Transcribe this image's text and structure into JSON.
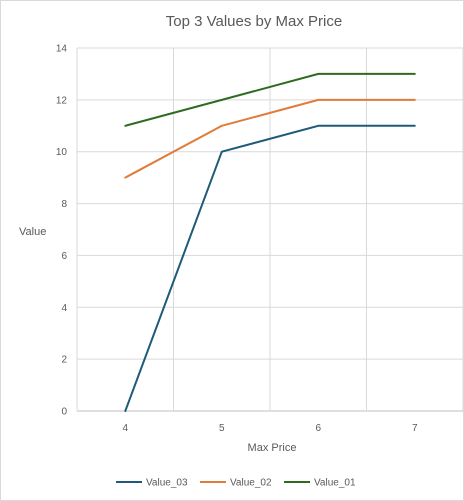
{
  "chart_data": {
    "type": "line",
    "title": "Top 3 Values by Max Price",
    "xlabel": "Max Price",
    "ylabel": "Value",
    "x": [
      4,
      5,
      6,
      7
    ],
    "xlim": [
      3.5,
      7.5
    ],
    "ylim": [
      0,
      14
    ],
    "yticks": [
      0,
      2,
      4,
      6,
      8,
      10,
      12,
      14
    ],
    "grid": true,
    "legend_position": "bottom",
    "series": [
      {
        "name": "Value_03",
        "values": [
          0,
          10,
          11,
          11
        ],
        "color": "#1f5a7a"
      },
      {
        "name": "Value_02",
        "values": [
          9,
          11,
          12,
          12
        ],
        "color": "#e07b39"
      },
      {
        "name": "Value_01",
        "values": [
          11,
          12,
          13,
          13
        ],
        "color": "#2e6b1f"
      }
    ]
  }
}
